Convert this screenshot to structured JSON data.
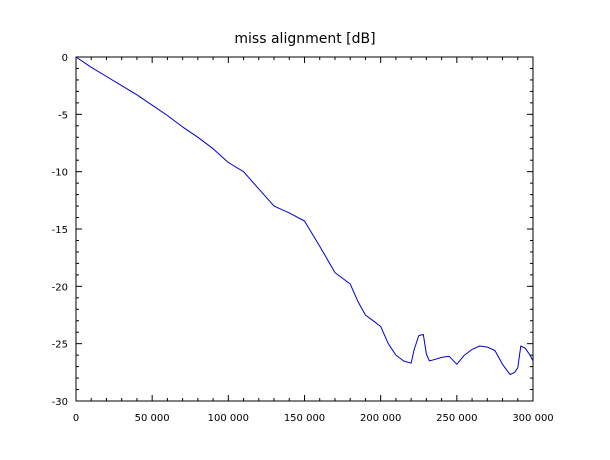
{
  "chart_data": {
    "type": "line",
    "title": "miss alignment [dB]",
    "xlim": [
      0,
      300000
    ],
    "ylim": [
      -30,
      0
    ],
    "x_ticks": [
      {
        "value": 0,
        "label": "0"
      },
      {
        "value": 50000,
        "label": "50 000"
      },
      {
        "value": 100000,
        "label": "100 000"
      },
      {
        "value": 150000,
        "label": "150 000"
      },
      {
        "value": 200000,
        "label": "200 000"
      },
      {
        "value": 250000,
        "label": "250 000"
      },
      {
        "value": 300000,
        "label": "300 000"
      }
    ],
    "y_ticks": [
      {
        "value": 0,
        "label": "0"
      },
      {
        "value": -5,
        "label": "-5"
      },
      {
        "value": -10,
        "label": "-10"
      },
      {
        "value": -15,
        "label": "-15"
      },
      {
        "value": -20,
        "label": "-20"
      },
      {
        "value": -25,
        "label": "-25"
      },
      {
        "value": -30,
        "label": "-30"
      }
    ],
    "grid": false,
    "series": [
      {
        "color": "#0000cc",
        "x": [
          0,
          10000,
          20000,
          30000,
          40000,
          50000,
          60000,
          70000,
          80000,
          90000,
          100000,
          110000,
          120000,
          130000,
          140000,
          150000,
          160000,
          170000,
          180000,
          185000,
          190000,
          195000,
          200000,
          205000,
          210000,
          215000,
          220000,
          222000,
          225000,
          228000,
          230000,
          232000,
          235000,
          240000,
          245000,
          250000,
          255000,
          260000,
          265000,
          270000,
          275000,
          280000,
          285000,
          288000,
          290000,
          292000,
          295000,
          298000,
          300000
        ],
        "y": [
          0,
          -0.9,
          -1.7,
          -2.5,
          -3.3,
          -4.2,
          -5.1,
          -6.1,
          -7.0,
          -8.0,
          -9.2,
          -10.0,
          -11.5,
          -13.0,
          -13.6,
          -14.3,
          -16.5,
          -18.8,
          -19.8,
          -21.3,
          -22.5,
          -23.0,
          -23.5,
          -25.0,
          -26.0,
          -26.5,
          -26.7,
          -25.5,
          -24.3,
          -24.2,
          -25.9,
          -26.5,
          -26.4,
          -26.2,
          -26.1,
          -26.8,
          -26.0,
          -25.5,
          -25.2,
          -25.3,
          -25.6,
          -26.8,
          -27.7,
          -27.5,
          -27.1,
          -25.2,
          -25.4,
          -26.0,
          -26.5
        ]
      }
    ]
  }
}
